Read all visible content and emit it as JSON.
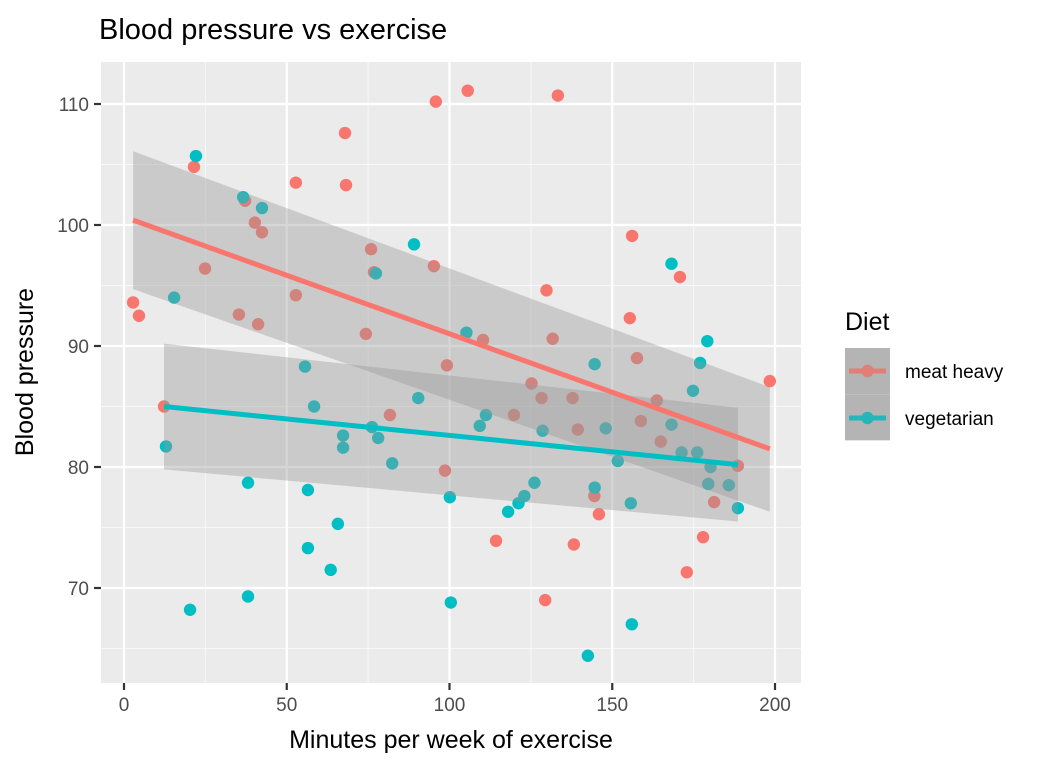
{
  "chart_data": {
    "type": "scatter",
    "title": "Blood pressure vs exercise",
    "xlabel": "Minutes per week of exercise",
    "ylabel": "Blood pressure",
    "xlim": [
      -7,
      207
    ],
    "ylim": [
      62.5,
      113.5
    ],
    "x_ticks": [
      0,
      50,
      100,
      150,
      200
    ],
    "y_ticks": [
      70,
      80,
      90,
      100,
      110
    ],
    "x_tick_labels": [
      "0",
      "50",
      "100",
      "150",
      "200"
    ],
    "y_tick_labels": [
      "70",
      "80",
      "90",
      "100",
      "110"
    ],
    "grid": true,
    "legend": {
      "title": "Diet",
      "position": "right",
      "entries": [
        "meat heavy",
        "vegetarian"
      ]
    },
    "series": [
      {
        "name": "meat heavy",
        "color": "#F8766D",
        "points": [
          [
            2.8,
            93.6
          ],
          [
            4.6,
            92.5
          ],
          [
            21.5,
            104.8
          ],
          [
            37.2,
            102.0
          ],
          [
            40.2,
            100.2
          ],
          [
            42.4,
            99.4
          ],
          [
            24.9,
            96.4
          ],
          [
            35.3,
            92.6
          ],
          [
            41.2,
            91.8
          ],
          [
            12.3,
            85.0
          ],
          [
            52.8,
            103.5
          ],
          [
            52.8,
            94.2
          ],
          [
            67.9,
            107.6
          ],
          [
            68.2,
            103.3
          ],
          [
            75.9,
            98.0
          ],
          [
            76.8,
            96.1
          ],
          [
            74.3,
            91.0
          ],
          [
            81.7,
            84.3
          ],
          [
            95.8,
            110.2
          ],
          [
            95.2,
            96.6
          ],
          [
            105.6,
            111.1
          ],
          [
            133.3,
            110.7
          ],
          [
            99.2,
            88.4
          ],
          [
            110.3,
            90.5
          ],
          [
            119.8,
            84.3
          ],
          [
            129.8,
            94.6
          ],
          [
            131.7,
            90.6
          ],
          [
            125.2,
            86.9
          ],
          [
            128.3,
            85.7
          ],
          [
            137.8,
            85.7
          ],
          [
            139.4,
            83.1
          ],
          [
            114.3,
            73.9
          ],
          [
            129.4,
            69.0
          ],
          [
            138.2,
            73.6
          ],
          [
            145.9,
            76.1
          ],
          [
            155.4,
            92.3
          ],
          [
            156.1,
            99.1
          ],
          [
            157.6,
            89.0
          ],
          [
            158.8,
            83.8
          ],
          [
            163.7,
            85.5
          ],
          [
            164.9,
            82.1
          ],
          [
            170.8,
            95.7
          ],
          [
            172.9,
            71.3
          ],
          [
            177.9,
            74.2
          ],
          [
            181.3,
            77.1
          ],
          [
            188.6,
            80.1
          ],
          [
            198.4,
            87.1
          ],
          [
            98.6,
            79.7
          ],
          [
            144.5,
            77.6
          ]
        ],
        "trend": {
          "x": [
            2.8,
            198.4
          ],
          "y": [
            100.4,
            81.5
          ]
        },
        "ci": {
          "x": [
            2.8,
            198.4
          ],
          "upper": [
            106.1,
            86.6
          ],
          "lower": [
            94.7,
            76.3
          ]
        }
      },
      {
        "name": "vegetarian",
        "color": "#00BFC4",
        "points": [
          [
            22.1,
            105.7
          ],
          [
            36.6,
            102.3
          ],
          [
            42.4,
            101.4
          ],
          [
            15.4,
            94.0
          ],
          [
            12.9,
            81.7
          ],
          [
            38.1,
            78.7
          ],
          [
            20.3,
            68.2
          ],
          [
            38.1,
            69.3
          ],
          [
            55.6,
            88.3
          ],
          [
            58.4,
            85.0
          ],
          [
            67.3,
            82.6
          ],
          [
            67.3,
            81.6
          ],
          [
            56.5,
            78.1
          ],
          [
            56.5,
            73.3
          ],
          [
            65.7,
            75.3
          ],
          [
            63.5,
            71.5
          ],
          [
            76.2,
            83.3
          ],
          [
            78.1,
            82.4
          ],
          [
            82.4,
            80.3
          ],
          [
            77.4,
            96.0
          ],
          [
            89.1,
            98.4
          ],
          [
            90.4,
            85.7
          ],
          [
            105.2,
            91.1
          ],
          [
            109.3,
            83.4
          ],
          [
            111.2,
            84.3
          ],
          [
            100.1,
            77.5
          ],
          [
            100.4,
            68.8
          ],
          [
            118.0,
            76.3
          ],
          [
            121.2,
            77.0
          ],
          [
            123.0,
            77.6
          ],
          [
            126.1,
            78.7
          ],
          [
            128.6,
            83.0
          ],
          [
            144.6,
            88.5
          ],
          [
            144.6,
            78.3
          ],
          [
            148.0,
            83.2
          ],
          [
            151.7,
            80.5
          ],
          [
            155.7,
            77.0
          ],
          [
            156.0,
            67.0
          ],
          [
            142.5,
            64.4
          ],
          [
            168.2,
            96.8
          ],
          [
            168.2,
            83.5
          ],
          [
            171.3,
            81.2
          ],
          [
            174.8,
            86.3
          ],
          [
            176.1,
            81.2
          ],
          [
            177.0,
            88.6
          ],
          [
            179.2,
            90.4
          ],
          [
            179.5,
            78.6
          ],
          [
            180.2,
            80.0
          ],
          [
            185.8,
            78.5
          ],
          [
            188.6,
            76.6
          ]
        ],
        "trend": {
          "x": [
            12.3,
            188.6
          ],
          "y": [
            85.0,
            80.2
          ]
        },
        "ci": {
          "x": [
            12.3,
            188.6
          ],
          "upper": [
            90.2,
            84.9
          ],
          "lower": [
            79.8,
            75.5
          ]
        }
      }
    ]
  }
}
